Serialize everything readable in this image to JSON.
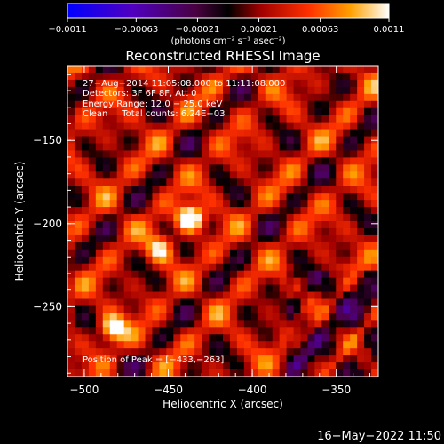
{
  "chart_data": {
    "type": "heatmap",
    "title": "Reconstructed RHESSI Image",
    "xlabel": "Heliocentric X (arcsec)",
    "ylabel": "Heliocentric Y (arcsec)",
    "xlim": [
      -510,
      -325
    ],
    "ylim": [
      -292,
      -105
    ],
    "x_ticks": [
      -500,
      -450,
      -400,
      -350
    ],
    "y_ticks": [
      -150,
      -200,
      -250
    ],
    "x_tick_labels": [
      "−500",
      "−450",
      "−400",
      "−350"
    ],
    "y_tick_labels": [
      "−150",
      "−200",
      "−250"
    ],
    "colorbar": {
      "range": [
        -0.0011,
        0.0011
      ],
      "ticks": [
        -0.0011,
        -0.00063,
        -0.00021,
        0.00021,
        0.00063,
        0.0011
      ],
      "tick_labels": [
        "−0.0011",
        "−0.00063",
        "−0.00021",
        "0.00021",
        "0.00063",
        "0.0011"
      ],
      "unit_text": "(photons cm⁻² s⁻¹ asec⁻²)"
    },
    "annotations": [
      "27−Aug−2014 11:05:08.000 to 11:11:08.000",
      "Detectors: 3F 6F 8F, Att 0",
      "Energy Range: 12.0 − 25.0 keV",
      "Clean     Total counts: 6.24E+03"
    ],
    "peak_label": "Position of Peak = [−433,−263]",
    "peak": [
      -433,
      -263
    ]
  },
  "footer": {
    "timestamp": "16−May−2022 11:50"
  }
}
